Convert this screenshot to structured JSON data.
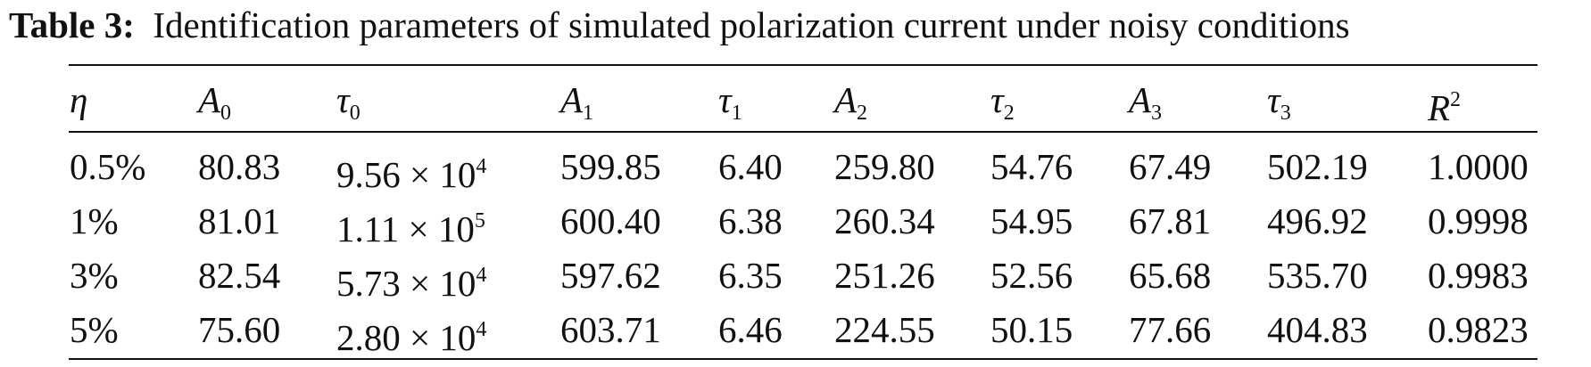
{
  "caption": {
    "label": "Table 3:",
    "text": "Identification parameters of simulated polarization current under noisy conditions"
  },
  "table": {
    "headers": [
      {
        "symbol": "η",
        "index": "",
        "sup": ""
      },
      {
        "symbol": "A",
        "index": "0",
        "sup": ""
      },
      {
        "symbol": "τ",
        "index": "0",
        "sup": ""
      },
      {
        "symbol": "A",
        "index": "1",
        "sup": ""
      },
      {
        "symbol": "τ",
        "index": "1",
        "sup": ""
      },
      {
        "symbol": "A",
        "index": "2",
        "sup": ""
      },
      {
        "symbol": "τ",
        "index": "2",
        "sup": ""
      },
      {
        "symbol": "A",
        "index": "3",
        "sup": ""
      },
      {
        "symbol": "τ",
        "index": "3",
        "sup": ""
      },
      {
        "symbol": "R",
        "index": "",
        "sup": "2"
      }
    ],
    "rows": [
      {
        "eta": "0.5%",
        "A0": "80.83",
        "tau0": {
          "mantissa": "9.56 × 10",
          "exponent": "4"
        },
        "A1": "599.85",
        "tau1": "6.40",
        "A2": "259.80",
        "tau2": "54.76",
        "A3": "67.49",
        "tau3": "502.19",
        "R2": "1.0000"
      },
      {
        "eta": "1%",
        "A0": "81.01",
        "tau0": {
          "mantissa": "1.11 × 10",
          "exponent": "5"
        },
        "A1": "600.40",
        "tau1": "6.38",
        "A2": "260.34",
        "tau2": "54.95",
        "A3": "67.81",
        "tau3": "496.92",
        "R2": "0.9998"
      },
      {
        "eta": "3%",
        "A0": "82.54",
        "tau0": {
          "mantissa": "5.73 × 10",
          "exponent": "4"
        },
        "A1": "597.62",
        "tau1": "6.35",
        "A2": "251.26",
        "tau2": "52.56",
        "A3": "65.68",
        "tau3": "535.70",
        "R2": "0.9983"
      },
      {
        "eta": "5%",
        "A0": "75.60",
        "tau0": {
          "mantissa": "2.80 × 10",
          "exponent": "4"
        },
        "A1": "603.71",
        "tau1": "6.46",
        "A2": "224.55",
        "tau2": "50.15",
        "A3": "77.66",
        "tau3": "404.83",
        "R2": "0.9823"
      }
    ]
  }
}
